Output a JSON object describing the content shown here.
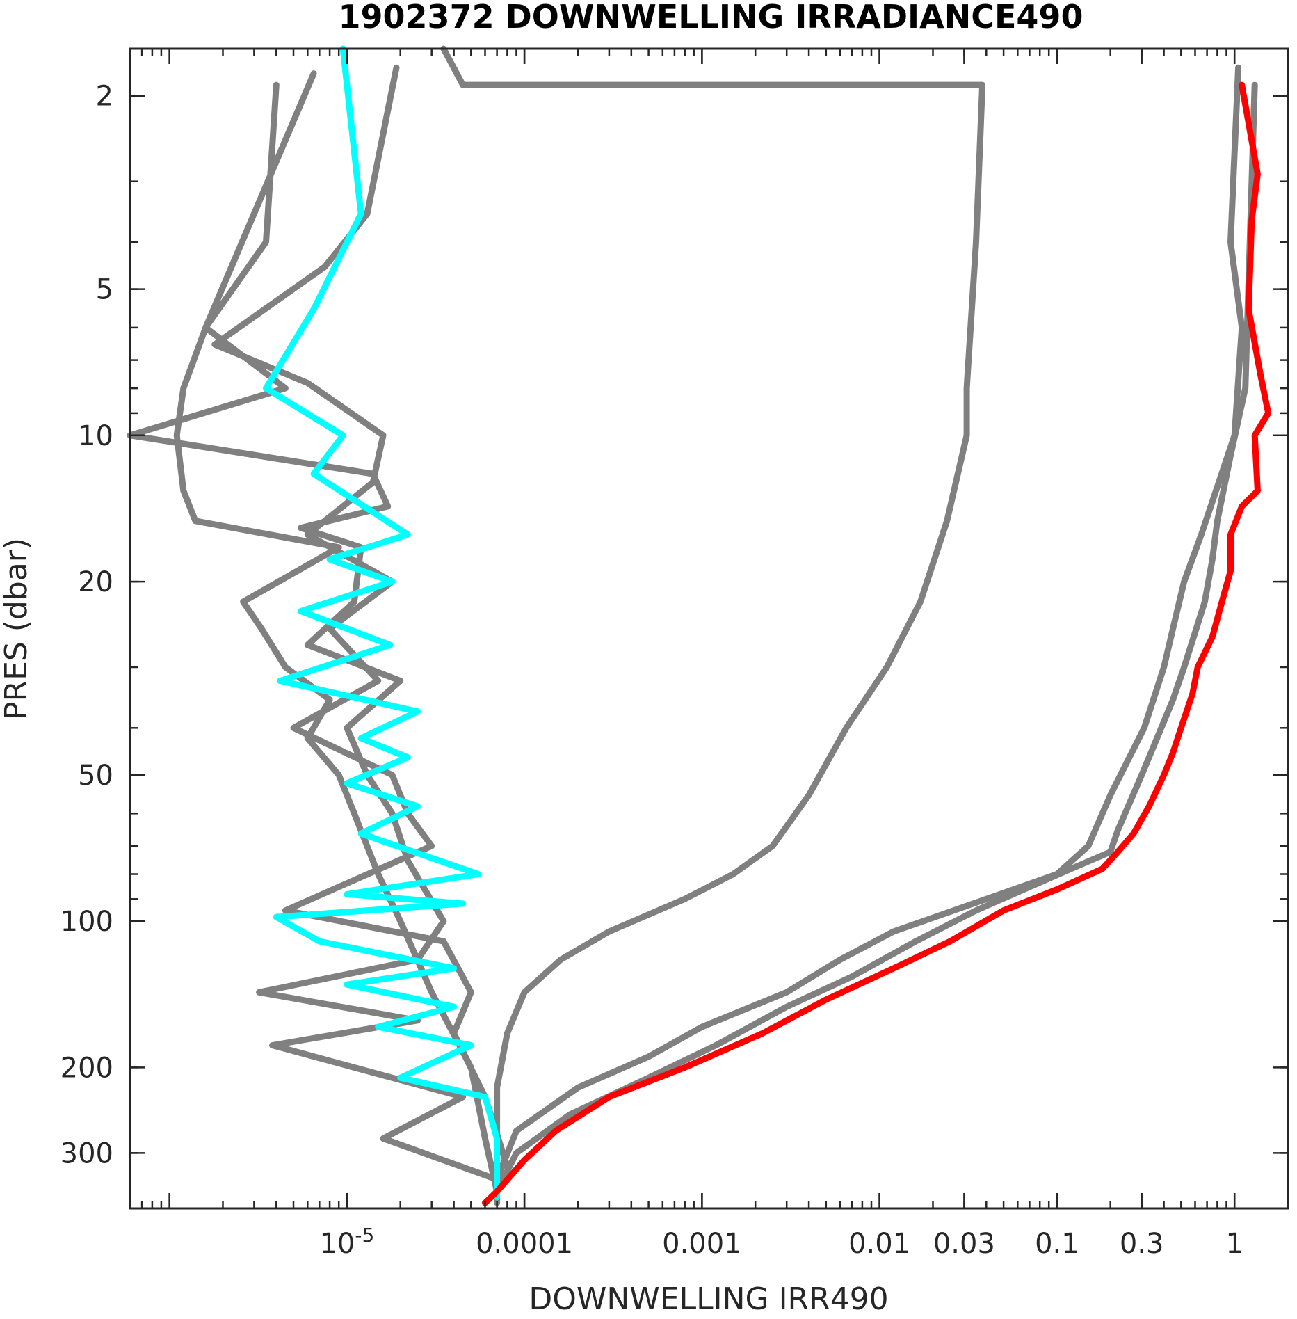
{
  "chart_data": {
    "type": "line",
    "title": "1902372  DOWNWELLING IRRADIANCE490",
    "xlabel": "DOWNWELLING IRR490",
    "ylabel": "PRES (dbar)",
    "x_scale": "log",
    "y_scale": "log",
    "y_reversed": true,
    "xlim": [
      6e-07,
      2.0
    ],
    "ylim": [
      1.6,
      390
    ],
    "grid": false,
    "x_ticks": [
      {
        "value": 1e-05,
        "label": "10",
        "sup": "-5"
      },
      {
        "value": 0.0001,
        "label": "0.0001",
        "sup": ""
      },
      {
        "value": 0.001,
        "label": "0.001",
        "sup": ""
      },
      {
        "value": 0.01,
        "label": "0.01",
        "sup": ""
      },
      {
        "value": 0.03,
        "label": "0.03",
        "sup": ""
      },
      {
        "value": 0.1,
        "label": "0.1",
        "sup": ""
      },
      {
        "value": 0.3,
        "label": "0.3",
        "sup": ""
      },
      {
        "value": 1,
        "label": "1",
        "sup": ""
      }
    ],
    "y_ticks": [
      {
        "value": 2,
        "label": "2"
      },
      {
        "value": 5,
        "label": "5"
      },
      {
        "value": 10,
        "label": "10"
      },
      {
        "value": 20,
        "label": "20"
      },
      {
        "value": 50,
        "label": "50"
      },
      {
        "value": 100,
        "label": "100"
      },
      {
        "value": 200,
        "label": "200"
      },
      {
        "value": 300,
        "label": "300"
      }
    ],
    "colors": {
      "previous_profiles": "#808080",
      "deep_profile": "#00ffff",
      "current_profile": "#ff0000",
      "axis": "#262626"
    },
    "series": [
      {
        "color": "#808080",
        "points": [
          [
            4e-06,
            1.9
          ],
          [
            3.5e-06,
            4
          ],
          [
            1.6e-06,
            6
          ],
          [
            1.2e-06,
            8
          ],
          [
            1.1e-06,
            10
          ],
          [
            1.2e-06,
            13
          ],
          [
            1.4e-06,
            15
          ],
          [
            9e-06,
            17
          ],
          [
            2.6e-06,
            22
          ],
          [
            3.3e-06,
            25
          ],
          [
            4.5e-06,
            30
          ],
          [
            8e-06,
            35
          ],
          [
            6e-06,
            42
          ],
          [
            9e-06,
            50
          ],
          [
            1.1e-05,
            60
          ],
          [
            1.5e-05,
            80
          ],
          [
            2e-05,
            100
          ],
          [
            3e-05,
            140
          ],
          [
            5e-05,
            200
          ],
          [
            6e-05,
            280
          ],
          [
            7e-05,
            360
          ]
        ]
      },
      {
        "color": "#808080",
        "points": [
          [
            6.5e-06,
            1.8
          ],
          [
            1.6e-06,
            6
          ],
          [
            4.5e-06,
            8
          ],
          [
            6e-07,
            10
          ],
          [
            1.4e-05,
            12
          ],
          [
            1.7e-05,
            14
          ],
          [
            5.5e-06,
            15.5
          ],
          [
            1.2e-05,
            17
          ],
          [
            1.1e-05,
            22
          ],
          [
            6e-06,
            27
          ],
          [
            2e-05,
            32
          ],
          [
            1e-05,
            40
          ],
          [
            1.3e-05,
            50
          ],
          [
            1.8e-05,
            60
          ],
          [
            2.2e-05,
            75
          ],
          [
            3.5e-05,
            100
          ],
          [
            2.5e-05,
            120
          ],
          [
            3.2e-06,
            140
          ],
          [
            2.5e-05,
            160
          ],
          [
            3.8e-06,
            180
          ],
          [
            4.5e-05,
            230
          ],
          [
            1.6e-05,
            280
          ],
          [
            7e-05,
            340
          ]
        ]
      },
      {
        "color": "#808080",
        "points": [
          [
            1.9e-05,
            1.75
          ],
          [
            1.3e-05,
            3.5
          ],
          [
            7.5e-06,
            4.5
          ],
          [
            1.8e-06,
            6.5
          ],
          [
            6e-06,
            7.8
          ],
          [
            1.6e-05,
            10
          ],
          [
            1.4e-05,
            12.5
          ],
          [
            6e-06,
            16
          ],
          [
            1.8e-05,
            20
          ],
          [
            8e-06,
            25
          ],
          [
            1.5e-05,
            32
          ],
          [
            5e-06,
            40
          ],
          [
            1.8e-05,
            50
          ],
          [
            2.2e-05,
            60
          ],
          [
            3e-05,
            70
          ],
          [
            4.5e-06,
            95
          ],
          [
            3.5e-05,
            110
          ],
          [
            5e-05,
            140
          ],
          [
            4e-05,
            170
          ],
          [
            6e-05,
            230
          ],
          [
            8e-05,
            320
          ]
        ]
      },
      {
        "color": "#808080",
        "points": [
          [
            3.5e-05,
            1.6
          ],
          [
            4.5e-05,
            1.9
          ],
          [
            0.00035,
            1.9
          ],
          [
            0.038,
            1.9
          ],
          [
            0.035,
            4
          ],
          [
            0.031,
            8
          ],
          [
            0.031,
            10
          ],
          [
            0.024,
            15
          ],
          [
            0.017,
            22
          ],
          [
            0.011,
            30
          ],
          [
            0.0065,
            40
          ],
          [
            0.004,
            55
          ],
          [
            0.0025,
            70
          ],
          [
            0.0015,
            80
          ],
          [
            0.0008,
            90
          ],
          [
            0.0003,
            105
          ],
          [
            0.00016,
            120
          ],
          [
            0.0001,
            140
          ],
          [
            8e-05,
            170
          ],
          [
            7e-05,
            220
          ],
          [
            7e-05,
            300
          ],
          [
            7e-05,
            380
          ]
        ]
      },
      {
        "color": "#808080",
        "points": [
          [
            1.05,
            1.75
          ],
          [
            0.95,
            4
          ],
          [
            1.1,
            6
          ],
          [
            1.0,
            10
          ],
          [
            0.65,
            16
          ],
          [
            0.52,
            20
          ],
          [
            0.45,
            25
          ],
          [
            0.4,
            30
          ],
          [
            0.31,
            40
          ],
          [
            0.2,
            55
          ],
          [
            0.15,
            70
          ],
          [
            0.1,
            80
          ],
          [
            0.04,
            90
          ],
          [
            0.012,
            105
          ],
          [
            0.006,
            120
          ],
          [
            0.003,
            140
          ],
          [
            0.001,
            165
          ],
          [
            0.0005,
            190
          ],
          [
            0.0002,
            220
          ],
          [
            9e-05,
            270
          ],
          [
            7e-05,
            340
          ]
        ]
      },
      {
        "color": "#808080",
        "points": [
          [
            1.3,
            1.9
          ],
          [
            1.15,
            8
          ],
          [
            0.95,
            11
          ],
          [
            0.8,
            15
          ],
          [
            0.75,
            18
          ],
          [
            0.68,
            22
          ],
          [
            0.52,
            30
          ],
          [
            0.45,
            35
          ],
          [
            0.3,
            50
          ],
          [
            0.22,
            65
          ],
          [
            0.2,
            72
          ],
          [
            0.12,
            78
          ],
          [
            0.035,
            95
          ],
          [
            0.016,
            110
          ],
          [
            0.007,
            130
          ],
          [
            0.003,
            150
          ],
          [
            0.0012,
            180
          ],
          [
            0.0005,
            210
          ],
          [
            0.00018,
            250
          ],
          [
            9e-05,
            300
          ],
          [
            7e-05,
            360
          ]
        ]
      },
      {
        "color": "#00ffff",
        "points": [
          [
            9.5e-06,
            1.6
          ],
          [
            1.2e-05,
            3.5
          ],
          [
            6.5e-06,
            5.5
          ],
          [
            3.5e-06,
            8
          ],
          [
            9.5e-06,
            10
          ],
          [
            6.5e-06,
            12
          ],
          [
            2.2e-05,
            16
          ],
          [
            8e-06,
            18
          ],
          [
            1.8e-05,
            20
          ],
          [
            5.5e-06,
            23
          ],
          [
            1.75e-05,
            27
          ],
          [
            4.2e-06,
            32
          ],
          [
            2.5e-05,
            37
          ],
          [
            1.2e-05,
            42
          ],
          [
            2.2e-05,
            46
          ],
          [
            1e-05,
            52
          ],
          [
            2.5e-05,
            58
          ],
          [
            1.2e-05,
            66
          ],
          [
            5.5e-05,
            80
          ],
          [
            1e-05,
            88
          ],
          [
            4.5e-05,
            92
          ],
          [
            4e-06,
            98
          ],
          [
            7e-06,
            110
          ],
          [
            4e-05,
            125
          ],
          [
            1e-05,
            135
          ],
          [
            4e-05,
            150
          ],
          [
            1.5e-05,
            165
          ],
          [
            5e-05,
            180
          ],
          [
            2e-05,
            210
          ],
          [
            6e-05,
            230
          ],
          [
            7e-05,
            280
          ],
          [
            7e-05,
            370
          ]
        ]
      },
      {
        "color": "#ff0000",
        "points": [
          [
            1.1,
            1.9
          ],
          [
            1.35,
            2.9
          ],
          [
            1.25,
            3.6
          ],
          [
            1.2,
            5.5
          ],
          [
            1.4,
            7.5
          ],
          [
            1.55,
            9
          ],
          [
            1.3,
            10
          ],
          [
            1.35,
            13
          ],
          [
            1.1,
            14
          ],
          [
            0.95,
            16
          ],
          [
            0.95,
            19
          ],
          [
            0.85,
            22
          ],
          [
            0.75,
            26
          ],
          [
            0.62,
            30
          ],
          [
            0.58,
            34
          ],
          [
            0.5,
            40
          ],
          [
            0.45,
            45
          ],
          [
            0.4,
            50
          ],
          [
            0.33,
            58
          ],
          [
            0.27,
            66
          ],
          [
            0.22,
            72
          ],
          [
            0.18,
            78
          ],
          [
            0.1,
            86
          ],
          [
            0.05,
            95
          ],
          [
            0.025,
            110
          ],
          [
            0.012,
            125
          ],
          [
            0.005,
            145
          ],
          [
            0.0022,
            170
          ],
          [
            0.0008,
            200
          ],
          [
            0.0003,
            230
          ],
          [
            0.00015,
            270
          ],
          [
            0.0001,
            310
          ],
          [
            7e-05,
            360
          ],
          [
            6e-05,
            380
          ]
        ]
      }
    ]
  }
}
